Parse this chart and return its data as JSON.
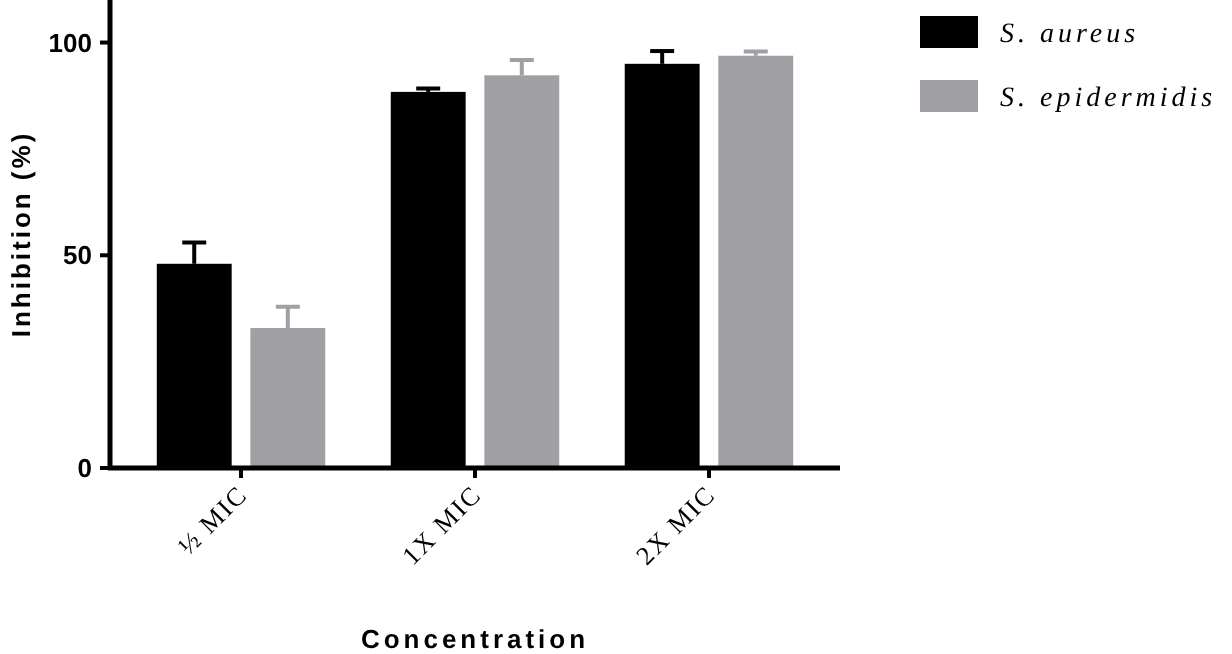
{
  "chart_data": {
    "type": "bar",
    "xlabel": "Concentration",
    "ylabel": "Inhibition (%)",
    "categories": [
      "½ MIC",
      "1X MIC",
      "2X MIC"
    ],
    "series": [
      {
        "name": "S. aureus",
        "color": "#000000",
        "values": [
          48,
          88.4,
          95
        ],
        "errors": [
          5,
          0.8,
          3
        ]
      },
      {
        "name": "S. epidermidis",
        "color": "#a0a0a4",
        "values": [
          32.9,
          92.3,
          96.9
        ],
        "errors": [
          5,
          3.6,
          1
        ]
      }
    ],
    "ylim": [
      0,
      110
    ],
    "yticks": [
      0,
      50,
      100
    ],
    "legend": "top right",
    "grid": false
  }
}
